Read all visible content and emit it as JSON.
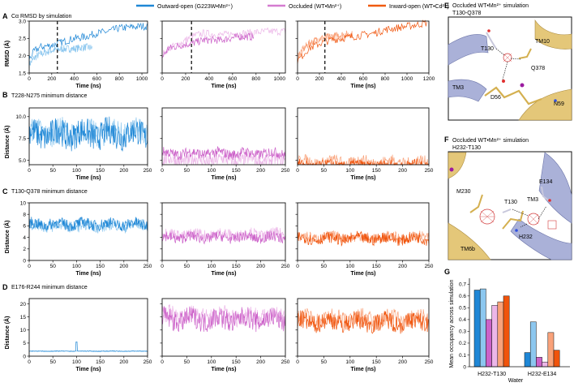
{
  "legend": {
    "items": [
      {
        "label": "Outward-open (G223W•Mn²⁺)",
        "color": "#1f87d6"
      },
      {
        "label": "Occluded (WT•Mn²⁺)",
        "color": "#d57bd0"
      },
      {
        "label": "Inward-open (WT•Cd²⁺)",
        "color": "#f05a10"
      }
    ]
  },
  "colors": {
    "outward_dark": "#1f87d6",
    "outward_light": "#8cc7ef",
    "occluded_dark": "#cc62c9",
    "occluded_light": "#ecb6e8",
    "inward_dark": "#f0540c",
    "inward_light": "#f9a27a",
    "structure_purple": "#aab1d8",
    "structure_yellow": "#e4c779",
    "density": "#d23a3a"
  },
  "panels": {
    "A": {
      "letter": "A",
      "title": "Cα RMSD by simulation",
      "ylabel": "RMSD (Å)",
      "xlabel": "Time (ns)"
    },
    "B": {
      "letter": "B",
      "title": "T228-N275 minimum distance",
      "ylabel": "Distance (Å)",
      "xlabel": "Time (ns)"
    },
    "C": {
      "letter": "C",
      "title": "T130-Q378 minimum distance",
      "ylabel": "Distance (Å)",
      "xlabel": "Time (ns)"
    },
    "D": {
      "letter": "D",
      "title": "E176-R244 minimum distance",
      "ylabel": "Distance (Å)",
      "xlabel": "Time (ns)"
    },
    "E": {
      "letter": "E",
      "title": "Occluded WT•Mn²⁺ simulation",
      "subtitle": "T130-Q378",
      "labels": [
        "T130",
        "TM10",
        "Q378",
        "TM3",
        "D56",
        "N59"
      ]
    },
    "F": {
      "letter": "F",
      "title": "Occluded WT•Mn²⁺ simulation",
      "subtitle": "H232-T130",
      "labels": [
        "E134",
        "M230",
        "T130",
        "TM3",
        "H232",
        "TM6b"
      ]
    },
    "G": {
      "letter": "G",
      "ylabel": "Mean occupancy across simulation",
      "xlabel": "Water"
    }
  },
  "chart_data": [
    {
      "type": "line",
      "panel": "A",
      "xlabel": "Time (ns)",
      "ylabel": "RMSD (Å)",
      "title": "Cα RMSD by simulation",
      "subplots": [
        {
          "xlim": [
            0,
            1050
          ],
          "xticks": [
            0,
            200,
            400,
            600,
            800,
            1000
          ],
          "ylim": [
            1.5,
            3.0
          ],
          "yticks": [
            1.5,
            2.0,
            2.5,
            3.0
          ],
          "marker": 250,
          "series": [
            {
              "shade": "light",
              "points": [
                [
                  0,
                  1.75
                ],
                [
                  50,
                  1.95
                ],
                [
                  100,
                  2.05
                ],
                [
                  200,
                  2.15
                ],
                [
                  300,
                  2.2
                ],
                [
                  400,
                  2.2
                ],
                [
                  500,
                  2.25
                ],
                [
                  560,
                  2.22
                ]
              ]
            },
            {
              "shade": "dark",
              "points": [
                [
                  0,
                  1.9
                ],
                [
                  50,
                  2.15
                ],
                [
                  100,
                  2.25
                ],
                [
                  200,
                  2.3
                ],
                [
                  300,
                  2.4
                ],
                [
                  400,
                  2.5
                ],
                [
                  500,
                  2.55
                ],
                [
                  600,
                  2.65
                ],
                [
                  700,
                  2.7
                ],
                [
                  800,
                  2.8
                ],
                [
                  900,
                  2.82
                ],
                [
                  1000,
                  2.85
                ],
                [
                  1050,
                  2.85
                ]
              ]
            }
          ]
        },
        {
          "xlim": [
            0,
            1050
          ],
          "xticks": [
            0,
            200,
            400,
            600,
            800,
            1000
          ],
          "ylim": [
            1.5,
            3.0
          ],
          "yticks": [
            1.5,
            2.0,
            2.5,
            3.0
          ],
          "marker": 250,
          "series": [
            {
              "shade": "light",
              "points": [
                [
                  0,
                  2.0
                ],
                [
                  50,
                  2.2
                ],
                [
                  150,
                  2.35
                ],
                [
                  250,
                  2.55
                ],
                [
                  350,
                  2.65
                ],
                [
                  500,
                  2.6
                ],
                [
                  700,
                  2.65
                ],
                [
                  900,
                  2.7
                ],
                [
                  1050,
                  2.7
                ]
              ]
            },
            {
              "shade": "dark",
              "points": [
                [
                  0,
                  1.95
                ],
                [
                  50,
                  2.2
                ],
                [
                  150,
                  2.3
                ],
                [
                  250,
                  2.35
                ],
                [
                  350,
                  2.45
                ],
                [
                  500,
                  2.45
                ],
                [
                  650,
                  2.55
                ],
                [
                  780,
                  2.55
                ]
              ]
            }
          ]
        },
        {
          "xlim": [
            0,
            1200
          ],
          "xticks": [
            0,
            200,
            400,
            600,
            800,
            1000,
            1200
          ],
          "ylim": [
            1.5,
            3.0
          ],
          "yticks": [
            1.5,
            2.0,
            2.5,
            3.0
          ],
          "marker": 250,
          "series": [
            {
              "shade": "light",
              "points": [
                [
                  0,
                  2.0
                ],
                [
                  100,
                  2.35
                ],
                [
                  200,
                  2.5
                ],
                [
                  300,
                  2.55
                ],
                [
                  400,
                  2.6
                ],
                [
                  500,
                  2.62
                ]
              ]
            },
            {
              "shade": "dark",
              "points": [
                [
                  0,
                  1.85
                ],
                [
                  100,
                  2.2
                ],
                [
                  200,
                  2.35
                ],
                [
                  300,
                  2.45
                ],
                [
                  400,
                  2.5
                ],
                [
                  500,
                  2.55
                ],
                [
                  600,
                  2.6
                ],
                [
                  700,
                  2.65
                ],
                [
                  800,
                  2.75
                ],
                [
                  900,
                  2.8
                ],
                [
                  1000,
                  2.85
                ],
                [
                  1100,
                  2.9
                ],
                [
                  1180,
                  2.95
                ]
              ]
            }
          ]
        }
      ]
    },
    {
      "type": "line",
      "panel": "B",
      "xlabel": "Time (ns)",
      "ylabel": "Distance (Å)",
      "title": "T228-N275 minimum distance",
      "subplots": [
        {
          "xlim": [
            0,
            250
          ],
          "xticks": [
            0,
            50,
            100,
            150,
            200,
            250
          ],
          "ylim": [
            4.5,
            11
          ],
          "yticks": [
            5.0,
            7.5,
            10.0
          ],
          "series": [
            {
              "shade": "light",
              "mean": 8.2,
              "amp": 1.4
            },
            {
              "shade": "dark",
              "mean": 8.0,
              "amp": 1.6
            }
          ]
        },
        {
          "xlim": [
            0,
            250
          ],
          "xticks": [
            0,
            50,
            100,
            150,
            200,
            250
          ],
          "ylim": [
            4.5,
            11
          ],
          "yticks": [
            5.0,
            7.5,
            10.0
          ],
          "series": [
            {
              "shade": "light",
              "mean": 5.0,
              "amp": 0.8
            },
            {
              "shade": "dark",
              "mean": 5.8,
              "amp": 0.6
            }
          ]
        },
        {
          "xlim": [
            0,
            250
          ],
          "xticks": [
            0,
            50,
            100,
            150,
            200,
            250
          ],
          "ylim": [
            4.5,
            11
          ],
          "yticks": [
            5.0,
            7.5,
            10.0
          ],
          "series": [
            {
              "shade": "light",
              "mean": 4.8,
              "amp": 0.7
            },
            {
              "shade": "dark",
              "mean": 4.4,
              "amp": 0.6
            }
          ]
        }
      ]
    },
    {
      "type": "line",
      "panel": "C",
      "xlabel": "Time (ns)",
      "ylabel": "Distance (Å)",
      "title": "T130-Q378 minimum distance",
      "subplots": [
        {
          "xlim": [
            0,
            250
          ],
          "xticks": [
            0,
            50,
            100,
            150,
            200,
            250
          ],
          "ylim": [
            0,
            10
          ],
          "yticks": [
            0,
            2,
            4,
            6,
            8,
            10
          ],
          "series": [
            {
              "shade": "light",
              "mean": 6.0,
              "amp": 1.0
            },
            {
              "shade": "dark",
              "mean": 6.3,
              "amp": 1.0
            }
          ]
        },
        {
          "xlim": [
            0,
            250
          ],
          "xticks": [
            0,
            50,
            100,
            150,
            200,
            250
          ],
          "ylim": [
            0,
            10
          ],
          "yticks": [
            0,
            2,
            4,
            6,
            8,
            10
          ],
          "series": [
            {
              "shade": "light",
              "mean": 4.5,
              "amp": 1.0
            },
            {
              "shade": "dark",
              "mean": 4.0,
              "amp": 0.9
            }
          ]
        },
        {
          "xlim": [
            0,
            250
          ],
          "xticks": [
            0,
            50,
            100,
            150,
            200,
            250
          ],
          "ylim": [
            0,
            10
          ],
          "yticks": [
            0,
            2,
            4,
            6,
            8,
            10
          ],
          "series": [
            {
              "shade": "light",
              "mean": 4.0,
              "amp": 0.9
            },
            {
              "shade": "dark",
              "mean": 3.8,
              "amp": 1.0
            }
          ]
        }
      ]
    },
    {
      "type": "line",
      "panel": "D",
      "xlabel": "Time (ns)",
      "ylabel": "Distance (Å)",
      "title": "E176-R244 minimum distance",
      "subplots": [
        {
          "xlim": [
            0,
            250
          ],
          "xticks": [
            0,
            50,
            100,
            150,
            200,
            250
          ],
          "ylim": [
            0,
            22
          ],
          "yticks": [
            0,
            5,
            10,
            15,
            20
          ],
          "series": [
            {
              "shade": "light",
              "mean": 1.9,
              "amp": 0.15
            },
            {
              "shade": "dark",
              "mean": 1.9,
              "amp": 0.1,
              "spike": [
                100,
                5.5
              ]
            }
          ]
        },
        {
          "xlim": [
            0,
            250
          ],
          "xticks": [
            0,
            50,
            100,
            150,
            200,
            250
          ],
          "ylim": [
            0,
            22
          ],
          "yticks": [
            0,
            5,
            10,
            15,
            20
          ],
          "series": [
            {
              "shade": "light",
              "mean": 15.5,
              "amp": 3.5
            },
            {
              "shade": "dark",
              "mean": 14.0,
              "amp": 4.0
            }
          ]
        },
        {
          "xlim": [
            0,
            250
          ],
          "xticks": [
            0,
            50,
            100,
            150,
            200,
            250
          ],
          "ylim": [
            0,
            22
          ],
          "yticks": [
            0,
            5,
            10,
            15,
            20
          ],
          "series": [
            {
              "shade": "light",
              "mean": 14.0,
              "amp": 3.5
            },
            {
              "shade": "dark",
              "mean": 13.0,
              "amp": 3.5
            }
          ]
        }
      ]
    },
    {
      "type": "bar",
      "panel": "G",
      "categories": [
        "H232-T130",
        "H232-E134"
      ],
      "ylim": [
        0,
        0.75
      ],
      "yticks": [
        0,
        0.1,
        0.2,
        0.3,
        0.4,
        0.5,
        0.6,
        0.7
      ],
      "ylabel": "Mean occupancy across simulation",
      "xlabel": "Water",
      "bars": [
        {
          "shade": "outward_dark",
          "values": [
            0.65,
            0.12
          ]
        },
        {
          "shade": "outward_light",
          "values": [
            0.66,
            0.38
          ]
        },
        {
          "shade": "occluded_dark",
          "values": [
            0.4,
            0.08
          ]
        },
        {
          "shade": "occluded_light",
          "values": [
            0.52,
            0.04
          ]
        },
        {
          "shade": "inward_light",
          "values": [
            0.55,
            0.29
          ]
        },
        {
          "shade": "inward_dark",
          "values": [
            0.6,
            0.14
          ]
        }
      ]
    }
  ]
}
